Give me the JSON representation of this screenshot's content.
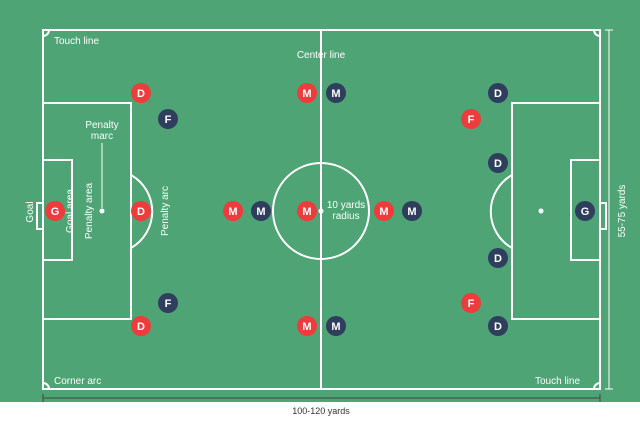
{
  "colors": {
    "pitch": "#4ea474",
    "lines": "#ffffff",
    "team_red": "#ee3b3b",
    "team_navy": "#2f3e5c",
    "measure": "#444444"
  },
  "labels": {
    "touch_line_top": "Touch line",
    "touch_line_bottom": "Touch line",
    "center_line": "Center line",
    "corner_arc": "Corner arc",
    "penalty_marc": "Penalty\nmarc",
    "penalty_arc": "Penalty arc",
    "penalty_area": "Penalty area",
    "goal_area": "Goal area",
    "goal": "Goal",
    "radius": "10 yards\nradius",
    "length": "100-120 yards",
    "width": "55-75 yards"
  },
  "players": [
    {
      "letter": "D",
      "team": "red"
    },
    {
      "letter": "F",
      "team": "navy"
    },
    {
      "letter": "G",
      "team": "red"
    },
    {
      "letter": "D",
      "team": "red"
    },
    {
      "letter": "F",
      "team": "navy"
    },
    {
      "letter": "D",
      "team": "red"
    },
    {
      "letter": "M",
      "team": "red"
    },
    {
      "letter": "M",
      "team": "navy"
    },
    {
      "letter": "M",
      "team": "red"
    },
    {
      "letter": "M",
      "team": "navy"
    },
    {
      "letter": "M",
      "team": "red"
    },
    {
      "letter": "M",
      "team": "red"
    },
    {
      "letter": "M",
      "team": "navy"
    },
    {
      "letter": "M",
      "team": "red"
    },
    {
      "letter": "M",
      "team": "navy"
    },
    {
      "letter": "D",
      "team": "navy"
    },
    {
      "letter": "F",
      "team": "red"
    },
    {
      "letter": "D",
      "team": "navy"
    },
    {
      "letter": "G",
      "team": "navy"
    },
    {
      "letter": "D",
      "team": "navy"
    },
    {
      "letter": "F",
      "team": "red"
    },
    {
      "letter": "D",
      "team": "navy"
    }
  ]
}
